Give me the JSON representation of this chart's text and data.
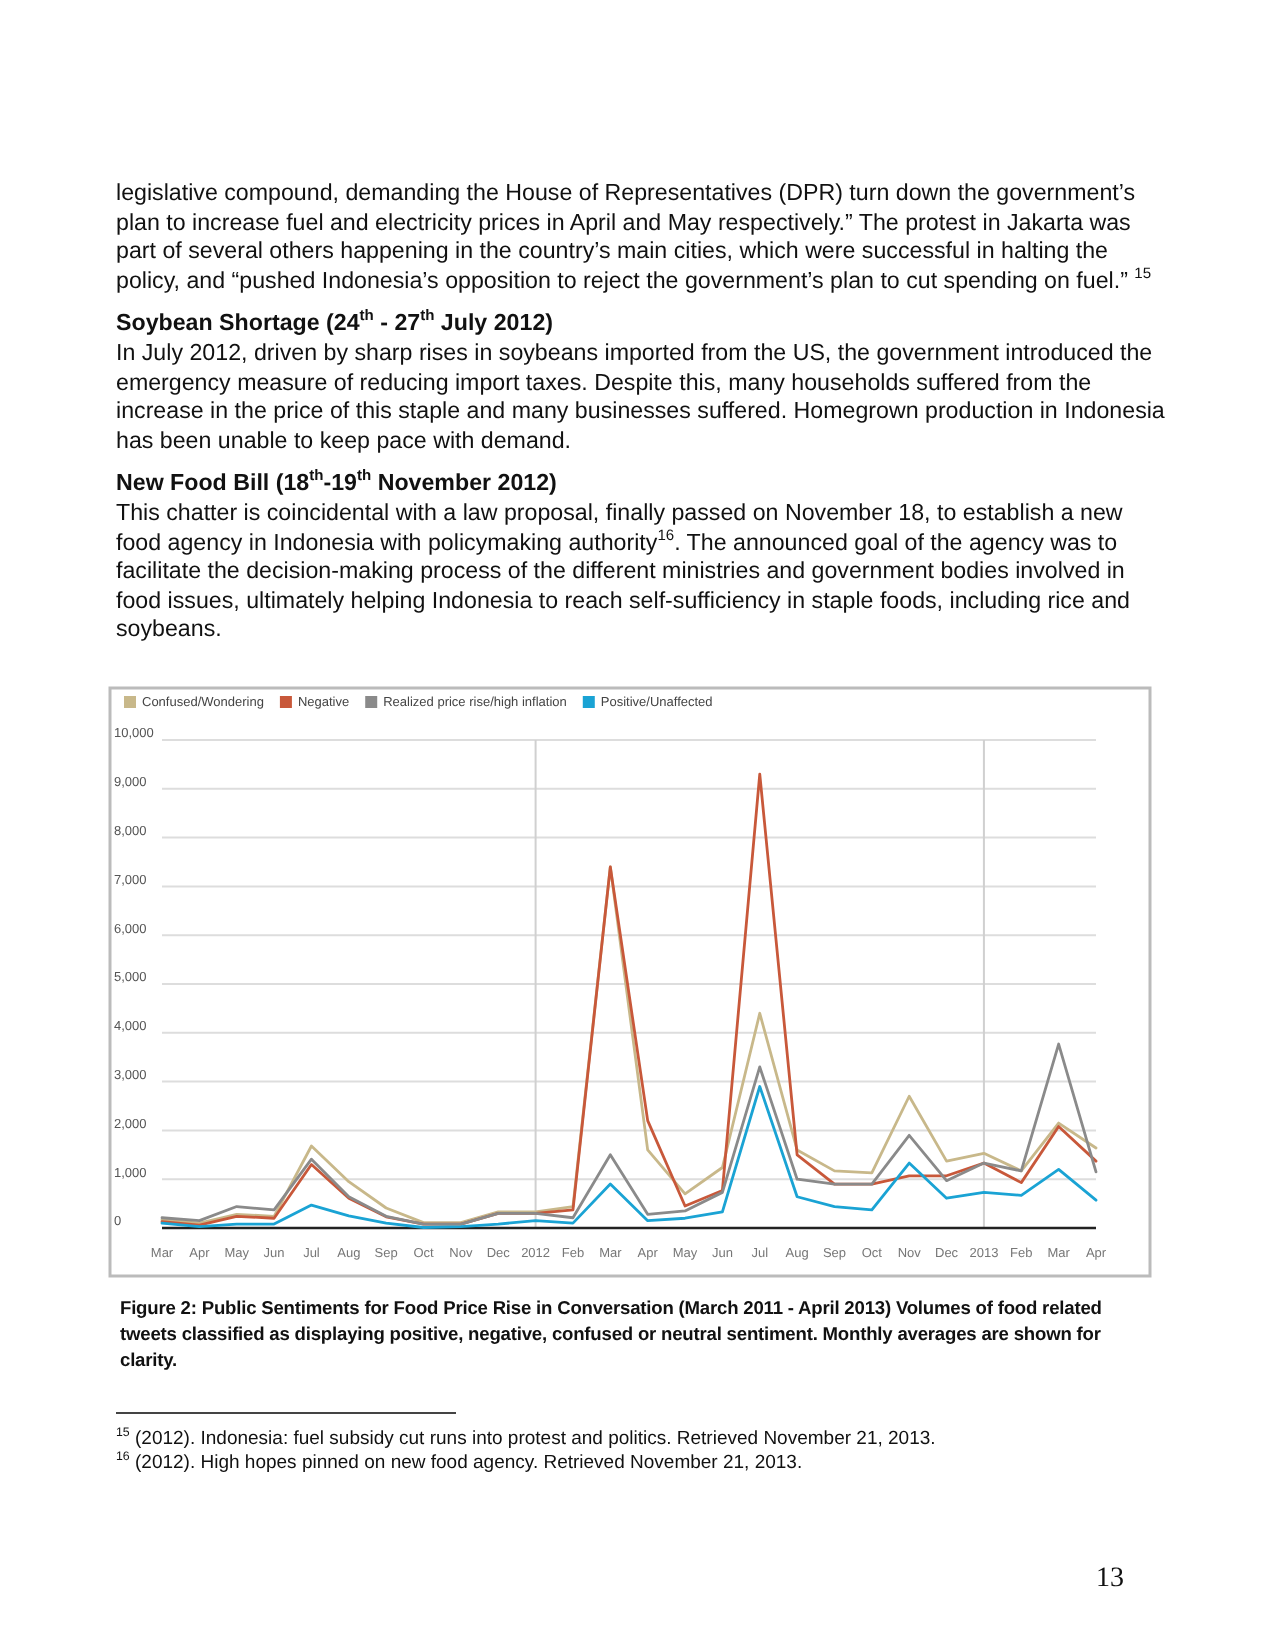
{
  "chart_data": {
    "type": "line",
    "title": "Figure 2: Public Sentiments for Food Price Rise in Conversation (March 2011 - April 2013) Volumes of food related tweets classified as displaying positive, negative, confused or neutral sentiment. Monthly averages are shown for clarity.",
    "annotations": [
      "legislative compound, demanding the House of Representatives (DPR) turn down the government’s plan to increase fuel and electricity prices in April and May respectively.” The protest in Jakarta was part of several others happening in the country’s main cities, which were successful in halting the policy, and “pushed Indonesia’s opposition to reject the government’s plan to cut spending on fuel.” $^{15}$",
      "Soybean Shortage (24$^{th}$ - 27$^{th}$ July 2012)",
      "In July 2012, driven by sharp rises in soybeans imported from the US, the government introduced the emergency measure of reducing import taxes. Despite this, many households suffered from the increase in the price of this staple and many businesses suffered. Homegrown production in Indonesia has been unable to keep pace with demand.",
      "New Food Bill (18$^{th}$-19$^{th}$ November 2012)",
      "This chatter is coincidental with a law proposal, finally passed on November 18, to establish a new food agency in Indonesia with policymaking authority$^{16}$. The announced goal of the agency was to facilitate the decision-making process of the different ministries and government bodies involved in food issues, ultimately helping Indonesia to reach self-sufficiency in staple foods, including rice and soybeans.",
      "$^{15}$ (2012). Indonesia: fuel subsidy cut runs into protest and politics. Retrieved November 21, 2013.",
      "$^{16}$ (2012). High hopes pinned on new food agency. Retrieved November 21, 2013.",
      "13"
    ],
    "categories": [
      "Mar",
      "Apr",
      "May",
      "Jun",
      "Jul",
      "Aug",
      "Sep",
      "Oct",
      "Nov",
      "Dec",
      "2012",
      "Feb",
      "Mar",
      "Apr",
      "May",
      "Jun",
      "Jul",
      "Aug",
      "Sep",
      "Oct",
      "Nov",
      "Dec",
      "2013",
      "Feb",
      "Mar",
      "Apr"
    ],
    "series": [
      {
        "name": "Confused/Wondering",
        "color": "#c8b88a",
        "values": [
          170,
          100,
          280,
          240,
          1680,
          950,
          410,
          110,
          110,
          330,
          330,
          440,
          7400,
          1600,
          700,
          1240,
          4400,
          1600,
          1170,
          1130,
          2700,
          1370,
          1530,
          1170,
          2150,
          1640
        ]
      },
      {
        "name": "Negative",
        "color": "#c8583a",
        "values": [
          130,
          60,
          240,
          200,
          1300,
          610,
          230,
          80,
          80,
          300,
          300,
          370,
          7400,
          2200,
          450,
          770,
          9300,
          1500,
          900,
          900,
          1070,
          1070,
          1330,
          930,
          2080,
          1370
        ]
      },
      {
        "name": "Realized price rise/high inflation",
        "color": "#8a8a8a",
        "values": [
          210,
          150,
          440,
          370,
          1410,
          640,
          240,
          80,
          80,
          300,
          300,
          210,
          1500,
          280,
          350,
          730,
          3300,
          1000,
          900,
          900,
          1900,
          970,
          1330,
          1170,
          3770,
          1150
        ]
      },
      {
        "name": "Positive/Unaffected",
        "color": "#1aa3d4",
        "values": [
          100,
          30,
          80,
          80,
          470,
          250,
          100,
          10,
          30,
          80,
          150,
          100,
          900,
          150,
          200,
          330,
          2900,
          640,
          440,
          370,
          1330,
          610,
          730,
          670,
          1200,
          570
        ]
      }
    ],
    "ylim": [
      0,
      10000
    ],
    "yticks": [
      0,
      {
        "value": 1000,
        "label": "1,000"
      },
      {
        "value": 2000,
        "label": "2,000"
      },
      {
        "value": 3000,
        "label": "3,000"
      },
      {
        "value": 4000,
        "label": "4,000"
      },
      {
        "value": 5000,
        "label": "5,000"
      },
      {
        "value": 6000,
        "label": "6,000"
      },
      {
        "value": 7000,
        "label": "7,000"
      },
      {
        "value": 8000,
        "label": "8,000"
      },
      {
        "value": 9000,
        "label": "9,000"
      },
      {
        "value": 10000,
        "label": "10,000"
      }
    ],
    "grid": "y",
    "legend": "top left",
    "marker": "none",
    "line_style": "solid",
    "ref_lines": [
      {
        "axis": "x",
        "value": "2012",
        "color": "#d0d0d0"
      },
      {
        "axis": "x",
        "value": "2013",
        "color": "#d0d0d0"
      }
    ]
  }
}
